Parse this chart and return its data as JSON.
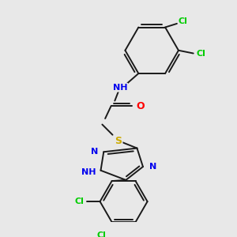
{
  "background_color": "#e8e8e8",
  "bond_color": "#1a1a1a",
  "atom_colors": {
    "Cl": "#00cc00",
    "N": "#0000ee",
    "O": "#ff0000",
    "S": "#ccaa00",
    "H": "#4a9090",
    "C": "#1a1a1a"
  },
  "figsize": [
    3.0,
    3.0
  ],
  "dpi": 100
}
